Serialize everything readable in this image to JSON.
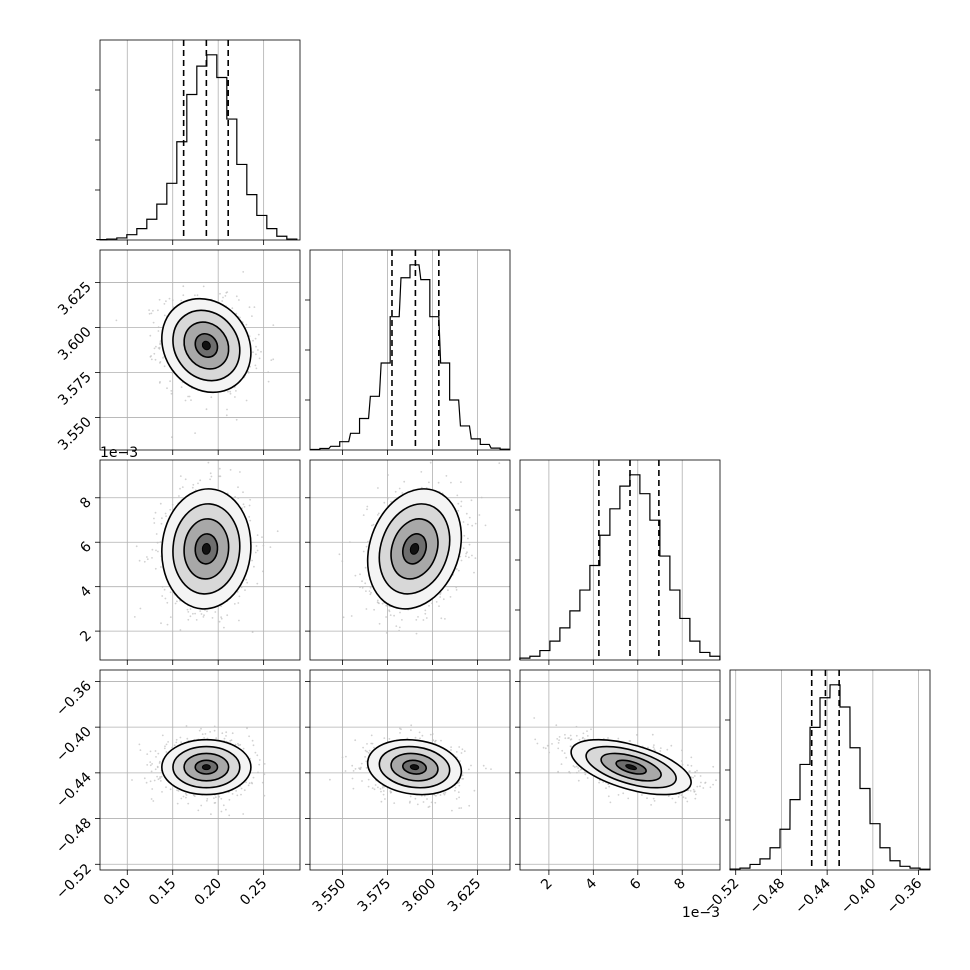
{
  "chart_data": {
    "type": "corner",
    "grid": true,
    "params": [
      {
        "range": [
          0.07,
          0.29
        ],
        "ticks": [
          0.1,
          0.15,
          0.2,
          0.25
        ],
        "tick_labels": [
          "0.10",
          "0.15",
          "0.20",
          "0.25"
        ],
        "offset_text": "",
        "hist_x": [
          0.072,
          0.083,
          0.094,
          0.105,
          0.116,
          0.127,
          0.138,
          0.149,
          0.16,
          0.171,
          0.182,
          0.193,
          0.204,
          0.215,
          0.226,
          0.237,
          0.248,
          0.259,
          0.27,
          0.281
        ],
        "hist_counts": [
          0.002,
          0.005,
          0.011,
          0.028,
          0.06,
          0.11,
          0.19,
          0.3,
          0.52,
          0.77,
          0.92,
          0.98,
          0.86,
          0.64,
          0.4,
          0.24,
          0.13,
          0.06,
          0.02,
          0.005
        ],
        "quantiles": [
          0.162,
          0.187,
          0.211
        ],
        "center": 0.187
      },
      {
        "range": [
          3.532,
          3.643
        ],
        "ticks": [
          3.55,
          3.575,
          3.6,
          3.625
        ],
        "tick_labels": [
          "3.550",
          "3.575",
          "3.600",
          "3.625"
        ],
        "offset_text": "",
        "hist_x": [
          3.535,
          3.54,
          3.546,
          3.551,
          3.557,
          3.562,
          3.568,
          3.574,
          3.579,
          3.585,
          3.59,
          3.596,
          3.601,
          3.607,
          3.612,
          3.618,
          3.624,
          3.629,
          3.635,
          3.64
        ],
        "hist_counts": [
          0.003,
          0.008,
          0.02,
          0.045,
          0.09,
          0.17,
          0.29,
          0.47,
          0.72,
          0.93,
          1.0,
          0.92,
          0.72,
          0.47,
          0.27,
          0.13,
          0.06,
          0.03,
          0.01,
          0.004
        ],
        "quantiles": [
          3.5775,
          3.5905,
          3.6035
        ],
        "center": 3.59
      },
      {
        "range": [
          0.0007,
          0.0097
        ],
        "ticks": [
          0.002,
          0.004,
          0.006,
          0.008
        ],
        "tick_labels": [
          "2",
          "4",
          "6",
          "8"
        ],
        "offset_text": "1e−3",
        "hist_x": [
          0.00092,
          0.00137,
          0.00182,
          0.00227,
          0.00272,
          0.00317,
          0.00362,
          0.00407,
          0.00452,
          0.00497,
          0.00542,
          0.00587,
          0.00632,
          0.00677,
          0.00722,
          0.00767,
          0.00812,
          0.00857,
          0.00902,
          0.00947
        ],
        "hist_counts": [
          0.01,
          0.02,
          0.05,
          0.1,
          0.17,
          0.26,
          0.37,
          0.5,
          0.66,
          0.8,
          0.92,
          0.98,
          0.88,
          0.74,
          0.55,
          0.37,
          0.22,
          0.1,
          0.04,
          0.02
        ],
        "quantiles": [
          0.00425,
          0.00565,
          0.00695
        ],
        "center": 0.0057
      },
      {
        "range": [
          -0.525,
          -0.35
        ],
        "ticks": [
          -0.52,
          -0.48,
          -0.44,
          -0.4,
          -0.36
        ],
        "tick_labels": [
          "−0.52",
          "−0.48",
          "−0.44",
          "−0.40",
          "−0.36"
        ],
        "offset_text": "",
        "hist_x": [
          -0.5206,
          -0.5119,
          -0.5031,
          -0.4944,
          -0.4856,
          -0.4769,
          -0.4681,
          -0.4594,
          -0.4506,
          -0.4419,
          -0.4331,
          -0.4244,
          -0.4156,
          -0.4069,
          -0.3981,
          -0.3894,
          -0.3806,
          -0.3719,
          -0.3631,
          -0.3544
        ],
        "hist_counts": [
          0.005,
          0.01,
          0.03,
          0.06,
          0.12,
          0.22,
          0.38,
          0.57,
          0.77,
          0.93,
          1.0,
          0.88,
          0.66,
          0.44,
          0.25,
          0.12,
          0.05,
          0.02,
          0.01,
          0.004
        ],
        "quantiles": [
          -0.4535,
          -0.4415,
          -0.4295
        ],
        "center": -0.435
      }
    ],
    "pairs": [
      {
        "x": 0,
        "y": 1,
        "rho": -0.15
      },
      {
        "x": 0,
        "y": 2,
        "rho": 0.05
      },
      {
        "x": 1,
        "y": 2,
        "rho": 0.2
      },
      {
        "x": 0,
        "y": 3,
        "rho": 0.0
      },
      {
        "x": 1,
        "y": 3,
        "rho": -0.15
      },
      {
        "x": 2,
        "y": 3,
        "rho": -0.55
      }
    ],
    "colors": {
      "axis": "#000000",
      "grid": "#b0b0b0",
      "scatter": "#bdbdbd",
      "density": "#000000"
    }
  }
}
